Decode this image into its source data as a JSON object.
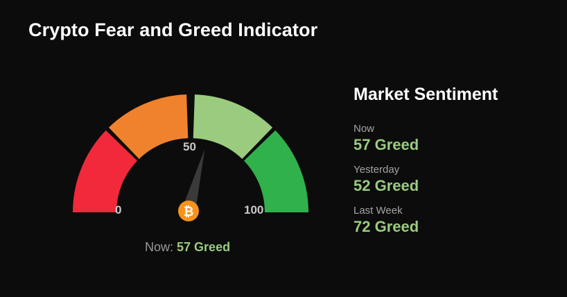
{
  "page": {
    "title": "Crypto Fear and Greed Indicator"
  },
  "gauge": {
    "value": 57,
    "min_label": "0",
    "mid_label": "50",
    "max_label": "100",
    "center_icon": "bitcoin-icon",
    "segment_colors": [
      "#f2293a",
      "#f0822d",
      "#9bcb7f",
      "#31b14b"
    ],
    "needle_color": "#3a3a3a",
    "coin_color": "#f7931a"
  },
  "now_line": {
    "prefix": "Now:",
    "value": "57 Greed"
  },
  "sentiment": {
    "title": "Market Sentiment",
    "items": [
      {
        "label": "Now",
        "value": "57 Greed"
      },
      {
        "label": "Yesterday",
        "value": "52 Greed"
      },
      {
        "label": "Last Week",
        "value": "72 Greed"
      }
    ],
    "value_color": "#9bcb7f"
  }
}
